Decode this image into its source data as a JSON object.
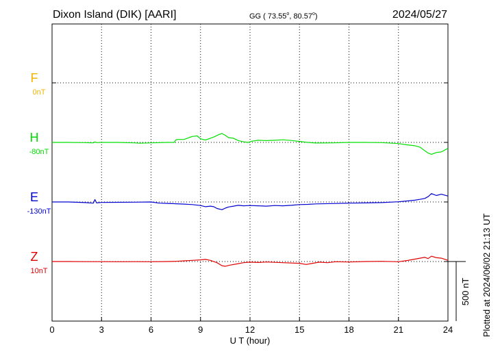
{
  "header": {
    "station": "Dixon Island (DIK)  [AARI]",
    "coords": "GG ( 73.55",
    "coords_deg1": "o",
    "coords_mid": ",  80.57",
    "coords_deg2": "o",
    "coords_end": ")",
    "date": "2024/05/27"
  },
  "footer": {
    "plotted": "Plotted at 2024/06/02 21:13 UT"
  },
  "colors": {
    "F": "#f0b400",
    "H": "#00e000",
    "E": "#0000d0",
    "Z": "#e00000"
  },
  "chart_data": {
    "type": "line",
    "xlabel": "U T (hour)",
    "xlim": [
      0,
      24
    ],
    "xticks": [
      0,
      3,
      6,
      9,
      12,
      15,
      18,
      21,
      24
    ],
    "xtick_labels": [
      "0",
      "3",
      "6",
      "9",
      "12",
      "15",
      "18",
      "21",
      "24"
    ],
    "grid": true,
    "scale_label": "500 nT",
    "scale_nT": 500,
    "series": [
      {
        "name": "F",
        "baseline_label": "0nT",
        "values": []
      },
      {
        "name": "H",
        "baseline_label": "-80nT",
        "x": [
          0,
          1,
          2,
          2.5,
          2.6,
          2.7,
          3,
          4,
          5,
          5.3,
          6,
          7,
          7.4,
          7.5,
          7.6,
          8,
          8.2,
          8.5,
          8.8,
          9,
          9.3,
          9.6,
          9.8,
          10.1,
          10.3,
          10.5,
          10.7,
          11,
          11.3,
          11.6,
          11.9,
          12.1,
          12.5,
          13,
          13.5,
          14,
          14.5,
          15,
          15.5,
          16,
          17,
          18,
          19,
          20,
          21,
          21.5,
          22,
          22.3,
          22.6,
          22.8,
          23,
          23.3,
          23.6,
          24
        ],
        "values": [
          -80,
          -80,
          -82,
          -84,
          -76,
          -82,
          -80,
          -80,
          -84,
          -87,
          -84,
          -80,
          -80,
          -60,
          -55,
          -55,
          -45,
          -30,
          -25,
          -50,
          -60,
          -45,
          -35,
          -15,
          -5,
          -20,
          -40,
          -45,
          -65,
          -75,
          -80,
          -70,
          -62,
          -65,
          -62,
          -58,
          -64,
          -72,
          -80,
          -85,
          -84,
          -80,
          -80,
          -82,
          -90,
          -100,
          -108,
          -120,
          -150,
          -170,
          -180,
          -165,
          -160,
          -130
        ]
      },
      {
        "name": "E",
        "baseline_label": "-130nT",
        "x": [
          0,
          1,
          2,
          2.5,
          2.6,
          2.7,
          3,
          4,
          5,
          6,
          6.5,
          7,
          7.5,
          8,
          8.5,
          9,
          9.3,
          9.6,
          9.8,
          10,
          10.3,
          10.5,
          10.7,
          11,
          11.3,
          11.6,
          12,
          12.5,
          13,
          13.5,
          14,
          14.5,
          15,
          15.5,
          16,
          17,
          18,
          19,
          20,
          21,
          21.5,
          22,
          22.3,
          22.6,
          22.8,
          23,
          23.3,
          23.6,
          24
        ],
        "values": [
          -130,
          -130,
          -135,
          -140,
          -110,
          -138,
          -134,
          -133,
          -132,
          -130,
          -140,
          -142,
          -145,
          -148,
          -152,
          -160,
          -170,
          -165,
          -170,
          -185,
          -195,
          -182,
          -172,
          -165,
          -158,
          -162,
          -160,
          -162,
          -165,
          -160,
          -162,
          -158,
          -152,
          -150,
          -146,
          -143,
          -140,
          -138,
          -135,
          -128,
          -122,
          -115,
          -108,
          -100,
          -85,
          -60,
          -75,
          -65,
          -80
        ]
      },
      {
        "name": "Z",
        "baseline_label": "10nT",
        "x": [
          0,
          1,
          2,
          3,
          4,
          5,
          6,
          7,
          7.5,
          8,
          8.5,
          9,
          9.3,
          9.6,
          10,
          10.3,
          10.5,
          10.8,
          11.2,
          11.6,
          12,
          12.5,
          13,
          14,
          15,
          15.4,
          15.8,
          16.2,
          16.7,
          17.2,
          18,
          19,
          20,
          21,
          21.5,
          22,
          22.3,
          22.6,
          22.8,
          23,
          23.3,
          23.6,
          24
        ],
        "values": [
          10,
          10,
          9,
          9,
          8,
          9,
          8,
          10,
          12,
          16,
          20,
          24,
          28,
          20,
          0,
          -25,
          -30,
          -20,
          -10,
          0,
          5,
          2,
          6,
          0,
          -5,
          -15,
          -5,
          5,
          0,
          8,
          6,
          10,
          12,
          8,
          18,
          30,
          38,
          45,
          35,
          55,
          42,
          38,
          20
        ]
      }
    ]
  }
}
